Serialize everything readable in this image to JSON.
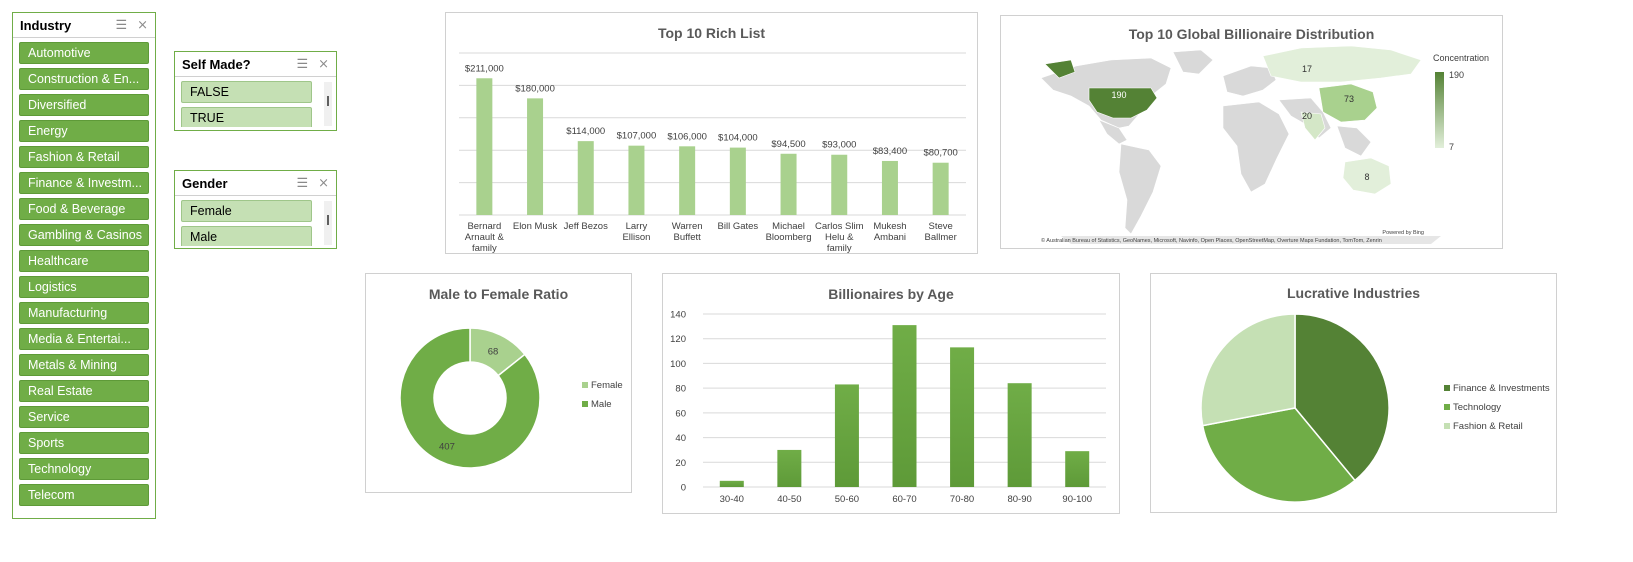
{
  "slicers": {
    "industry": {
      "title": "Industry",
      "items": [
        "Automotive",
        "Construction & En...",
        "Diversified",
        "Energy",
        "Fashion & Retail",
        "Finance & Investm...",
        "Food & Beverage",
        "Gambling & Casinos",
        "Healthcare",
        "Logistics",
        "Manufacturing",
        "Media & Entertai...",
        "Metals & Mining",
        "Real Estate",
        "Service",
        "Sports",
        "Technology",
        "Telecom"
      ]
    },
    "self_made": {
      "title": "Self Made?",
      "items": [
        "FALSE",
        "TRUE"
      ]
    },
    "gender": {
      "title": "Gender",
      "items": [
        "Female",
        "Male"
      ]
    }
  },
  "colors": {
    "accent": "#70ad47",
    "dark": "#548235",
    "light": "#c5e0b4",
    "mid": "#a9d18e",
    "border": "#d0d0d0"
  },
  "chart_data": [
    {
      "id": "rich",
      "type": "bar",
      "title": "Top 10 Rich List",
      "categories": [
        "Bernard Arnault & family",
        "Elon Musk",
        "Jeff Bezos",
        "Larry Ellison",
        "Warren Buffett",
        "Bill Gates",
        "Michael Bloomberg",
        "Carlos Slim Helu & family",
        "Mukesh Ambani",
        "Steve Ballmer"
      ],
      "values": [
        211000,
        180000,
        114000,
        107000,
        106000,
        104000,
        94500,
        93000,
        83400,
        80700
      ],
      "data_labels": [
        "$211,000",
        "$180,000",
        "$114,000",
        "$107,000",
        "$106,000",
        "$104,000",
        "$94,500",
        "$93,000",
        "$83,400",
        "$80,700"
      ],
      "ylim": [
        0,
        250000
      ],
      "grid": true
    },
    {
      "id": "map",
      "type": "heatmap",
      "title": "Top 10 Global Billionaire Distribution",
      "legend_title": "Concentration",
      "legend_max": "190",
      "legend_min": "7",
      "regions": [
        {
          "label": "190",
          "value": 190
        },
        {
          "label": "17",
          "value": 17
        },
        {
          "label": "73",
          "value": 73
        },
        {
          "label": "20",
          "value": 20
        },
        {
          "label": "8",
          "value": 8
        }
      ],
      "powered_by": "Powered by Bing",
      "attribution": "© Australian Bureau of Statistics, GeoNames, Microsoft, Navinfo, Open Places, OpenStreetMap, Overture Maps Fundation, TomTom, Zenrin"
    },
    {
      "id": "gender",
      "type": "pie",
      "title": "Male to Female Ratio",
      "categories": [
        "Female",
        "Male"
      ],
      "values": [
        68,
        407
      ],
      "legend": "right"
    },
    {
      "id": "age",
      "type": "bar",
      "title": "Billionaires by Age",
      "categories": [
        "30-40",
        "40-50",
        "50-60",
        "60-70",
        "70-80",
        "80-90",
        "90-100"
      ],
      "values": [
        5,
        30,
        83,
        131,
        113,
        84,
        29
      ],
      "ylim": [
        0,
        140
      ],
      "yticks": [
        "0",
        "20",
        "40",
        "60",
        "80",
        "100",
        "120",
        "140"
      ],
      "grid": true
    },
    {
      "id": "industries",
      "type": "pie",
      "title": "Lucrative Industries",
      "categories": [
        "Finance & Investments",
        "Technology",
        "Fashion & Retail"
      ],
      "values": [
        39,
        33,
        28
      ],
      "legend": "right"
    }
  ]
}
